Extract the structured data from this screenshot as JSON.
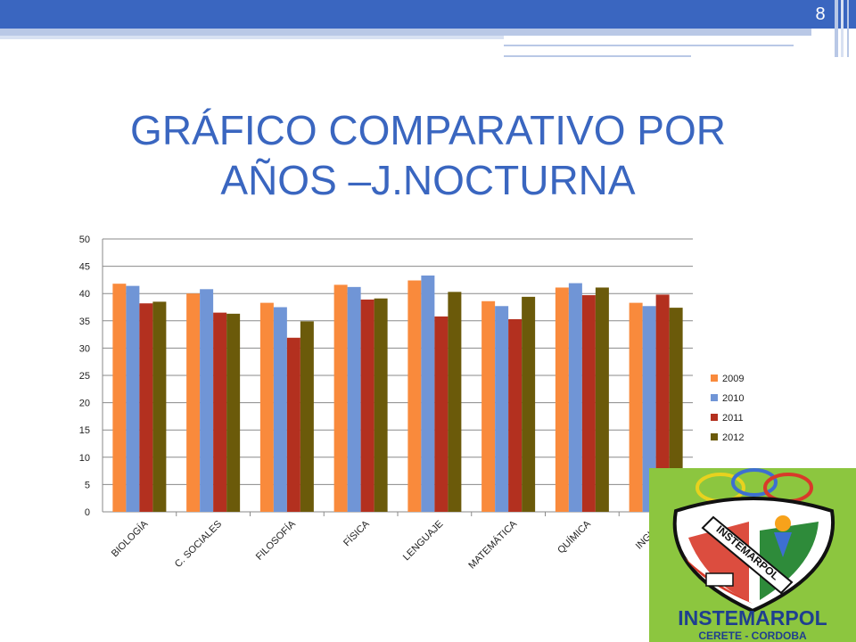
{
  "slide": {
    "page_number": "8",
    "title_line1": "GRÁFICO COMPARATIVO POR",
    "title_line2": "AÑOS –J.NOCTURNA"
  },
  "logo": {
    "text": "INSTEMARPOL",
    "banner": "INSTEMARPOL",
    "subtitle": "CERETE - CORDOBA"
  },
  "colors": {
    "accent": "#3a66c0",
    "s2009": "#f98a3c",
    "s2010": "#7095d6",
    "s2011": "#b3301f",
    "s2012": "#6b5a0a",
    "logo_bg": "#8cc63f"
  },
  "chart_data": {
    "type": "bar",
    "categories": [
      "BIOLOGÍA",
      "C. SOCIALES",
      "FILOSOFÍA",
      "FÍSICA",
      "LENGUAJE",
      "MATEMÁTICA",
      "QUÍMICA",
      "INGLÉS"
    ],
    "series": [
      {
        "name": "2009",
        "values": [
          41.8,
          40.0,
          38.3,
          41.6,
          42.4,
          38.6,
          41.1,
          38.3
        ]
      },
      {
        "name": "2010",
        "values": [
          41.4,
          40.8,
          37.5,
          41.2,
          43.3,
          37.7,
          41.9,
          37.7
        ]
      },
      {
        "name": "2011",
        "values": [
          38.2,
          36.5,
          31.9,
          38.9,
          35.8,
          35.3,
          39.7,
          39.8
        ]
      },
      {
        "name": "2012",
        "values": [
          38.5,
          36.3,
          34.9,
          39.1,
          40.3,
          39.4,
          41.1,
          37.4
        ]
      }
    ],
    "y_ticks": [
      "0",
      "5",
      "10",
      "15",
      "20",
      "25",
      "30",
      "35",
      "40",
      "45",
      "50"
    ],
    "ylim": [
      0,
      50
    ],
    "grid": true,
    "legend_position": "right"
  }
}
